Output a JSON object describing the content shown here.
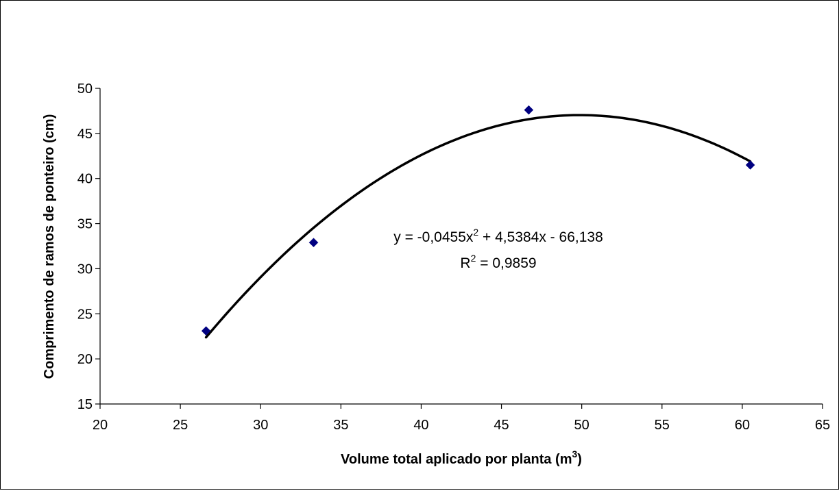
{
  "chart_data": {
    "type": "scatter",
    "title": "",
    "xlabel": "Volume total aplicado por planta (m",
    "xlabel_sup": "3",
    "xlabel_close": ")",
    "ylabel": "Comprimento de ramos de ponteiro (cm)",
    "xlim": [
      20,
      65
    ],
    "ylim": [
      15,
      50
    ],
    "xticks": [
      "20",
      "25",
      "30",
      "35",
      "40",
      "45",
      "50",
      "55",
      "60",
      "65"
    ],
    "yticks": [
      "15",
      "20",
      "25",
      "30",
      "35",
      "40",
      "45",
      "50"
    ],
    "grid": false,
    "legend": "none",
    "marker_color": "#000080",
    "trendline_color": "#000000",
    "series": [
      {
        "values": [
          {
            "x": 26.6,
            "y": 23.1
          },
          {
            "x": 33.3,
            "y": 32.9
          },
          {
            "x": 46.7,
            "y": 47.6
          },
          {
            "x": 60.5,
            "y": 41.5
          }
        ]
      }
    ],
    "trendline": {
      "type": "polynomial",
      "coefficients": [
        -0.0455,
        4.5384,
        -66.138
      ],
      "x_range": [
        26.6,
        60.5
      ],
      "equation_text": {
        "prefix": "y = -0,0455x",
        "sup": "2",
        "suffix": " + 4,5384x - 66,138"
      },
      "r2_text": {
        "prefix": "R",
        "sup": "2",
        "suffix": " = 0,9859"
      }
    }
  }
}
